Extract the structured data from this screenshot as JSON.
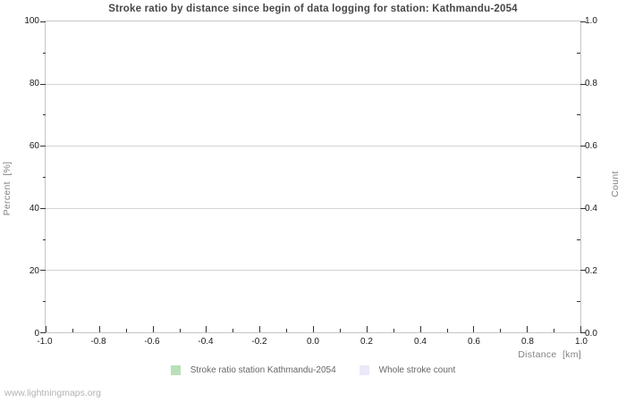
{
  "page": {
    "watermark": "www.lightningmaps.org"
  },
  "chart_data": {
    "type": "bar",
    "title": "Stroke ratio by distance since begin of data logging for station: Kathmandu-2054",
    "xlabel": "Distance  [km]",
    "ylabel_left": "Percent  [%]",
    "ylabel_right": "Count",
    "xlim": [
      -1.0,
      1.0
    ],
    "ylim_left": [
      0,
      100
    ],
    "ylim_right": [
      0.0,
      1.0
    ],
    "x_tick_labels": [
      "-1.0",
      "-0.8",
      "-0.6",
      "-0.4",
      "-0.2",
      "0.0",
      "0.2",
      "0.4",
      "0.6",
      "0.8",
      "1.0"
    ],
    "y_left_tick_labels": [
      "0",
      "20",
      "40",
      "60",
      "80",
      "100"
    ],
    "y_right_tick_labels": [
      "0.0",
      "0.2",
      "0.4",
      "0.6",
      "0.8",
      "1.0"
    ],
    "grid": "horizontal-major-only",
    "legend_position": "bottom-center",
    "series": [
      {
        "name": "Stroke ratio station Kathmandu-2054",
        "color": "#b9e0b9",
        "axis": "left",
        "values": []
      },
      {
        "name": "Whole stroke count",
        "color": "#e9e9f9",
        "axis": "right",
        "values": []
      }
    ],
    "note_no_data_plotted": "chart area is empty"
  }
}
